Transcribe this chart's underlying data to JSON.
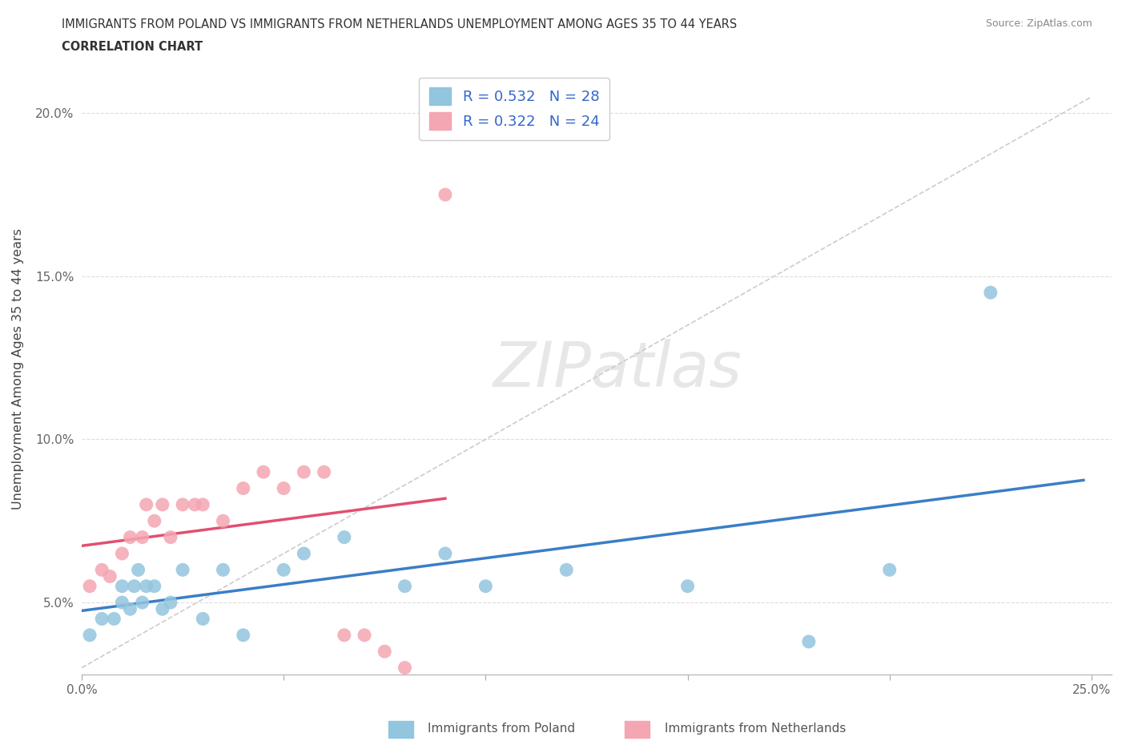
{
  "title_line1": "IMMIGRANTS FROM POLAND VS IMMIGRANTS FROM NETHERLANDS UNEMPLOYMENT AMONG AGES 35 TO 44 YEARS",
  "title_line2": "CORRELATION CHART",
  "source": "Source: ZipAtlas.com",
  "ylabel": "Unemployment Among Ages 35 to 44 years",
  "xlim": [
    0.0,
    0.255
  ],
  "ylim": [
    0.028,
    0.215
  ],
  "xticks": [
    0.0,
    0.05,
    0.1,
    0.15,
    0.2,
    0.25
  ],
  "yticks": [
    0.05,
    0.1,
    0.15,
    0.2
  ],
  "ytick_labels": [
    "5.0%",
    "10.0%",
    "15.0%",
    "20.0%"
  ],
  "xtick_labels": [
    "0.0%",
    "",
    "",
    "",
    "",
    "25.0%"
  ],
  "poland_color": "#92C5DE",
  "netherlands_color": "#F4A6B2",
  "poland_line_color": "#3A7EC6",
  "netherlands_line_color": "#E05070",
  "poland_R": 0.532,
  "poland_N": 28,
  "netherlands_R": 0.322,
  "netherlands_N": 24,
  "legend_text_color": "#3366CC",
  "poland_x": [
    0.002,
    0.005,
    0.008,
    0.01,
    0.01,
    0.012,
    0.013,
    0.014,
    0.015,
    0.016,
    0.018,
    0.02,
    0.022,
    0.025,
    0.03,
    0.035,
    0.04,
    0.05,
    0.055,
    0.065,
    0.08,
    0.09,
    0.1,
    0.12,
    0.15,
    0.18,
    0.2,
    0.225
  ],
  "poland_y": [
    0.04,
    0.045,
    0.045,
    0.05,
    0.055,
    0.048,
    0.055,
    0.06,
    0.05,
    0.055,
    0.055,
    0.048,
    0.05,
    0.06,
    0.045,
    0.06,
    0.04,
    0.06,
    0.065,
    0.07,
    0.055,
    0.065,
    0.055,
    0.06,
    0.055,
    0.038,
    0.06,
    0.145
  ],
  "netherlands_x": [
    0.002,
    0.005,
    0.007,
    0.01,
    0.012,
    0.015,
    0.016,
    0.018,
    0.02,
    0.022,
    0.025,
    0.028,
    0.03,
    0.035,
    0.04,
    0.045,
    0.05,
    0.055,
    0.06,
    0.065,
    0.07,
    0.075,
    0.08,
    0.09
  ],
  "netherlands_y": [
    0.055,
    0.06,
    0.058,
    0.065,
    0.07,
    0.07,
    0.08,
    0.075,
    0.08,
    0.07,
    0.08,
    0.08,
    0.08,
    0.075,
    0.085,
    0.09,
    0.085,
    0.09,
    0.09,
    0.04,
    0.04,
    0.035,
    0.03,
    0.175
  ],
  "ref_line_x": [
    0.0,
    0.25
  ],
  "ref_line_y": [
    0.03,
    0.205
  ]
}
